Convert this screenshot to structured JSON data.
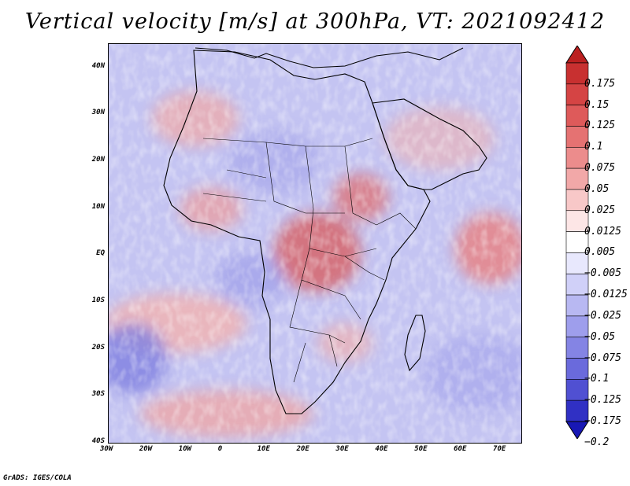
{
  "title": "Vertical velocity [m/s] at 300hPa, VT: 2021092412",
  "credit": "GrADS: IGES/COLA",
  "map": {
    "lon_range": [
      -30,
      75
    ],
    "lat_range": [
      -40,
      45
    ],
    "lat_labels": [
      "40N",
      "30N",
      "20N",
      "10N",
      "EQ",
      "10S",
      "20S",
      "30S",
      "40S"
    ],
    "lon_labels": [
      "30W",
      "20W",
      "10W",
      "0",
      "10E",
      "20E",
      "30E",
      "40E",
      "50E",
      "60E",
      "70E"
    ],
    "lat_ticks": [
      40,
      30,
      20,
      10,
      0,
      -10,
      -20,
      -30,
      -40
    ],
    "lon_ticks": [
      -30,
      -20,
      -10,
      0,
      10,
      20,
      30,
      40,
      50,
      60,
      70
    ]
  },
  "colorbar": {
    "levels": [
      "0.175",
      "0.15",
      "0.125",
      "0.1",
      "0.075",
      "0.05",
      "0.025",
      "0.0125",
      "0.005",
      "−0.005",
      "−0.0125",
      "−0.025",
      "−0.05",
      "−0.075",
      "−0.1",
      "−0.125",
      "−0.175",
      "−0.2"
    ],
    "colors": [
      "#bb2020",
      "#c83030",
      "#d54444",
      "#de5a5a",
      "#e57272",
      "#ec8c8c",
      "#f2a8a8",
      "#f8c8c8",
      "#fde6e6",
      "#ffffff",
      "#e8e8fd",
      "#d0d0f8",
      "#b8b8f2",
      "#9e9eec",
      "#8484e4",
      "#6a6adc",
      "#5050d2",
      "#3030c4",
      "#1818b4"
    ]
  }
}
